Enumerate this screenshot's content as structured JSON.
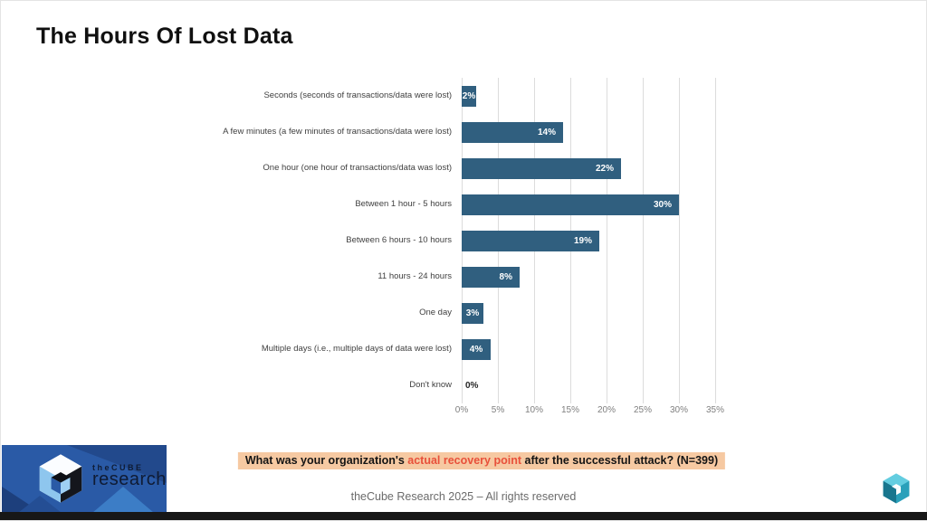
{
  "slide": {
    "title": "The Hours Of Lost Data",
    "question": {
      "prefix": "What was your organization's ",
      "highlight": "actual recovery point",
      "suffix": " after the successful attack? (N=399)",
      "bg_color": "#f6c9a2",
      "highlight_color": "#e8503a"
    },
    "footer": "theCube Research 2025 – All rights reserved"
  },
  "branding": {
    "logo_text_small": "theCUBE",
    "logo_text_large": "research"
  },
  "chart_data": {
    "type": "bar",
    "orientation": "horizontal",
    "title": "",
    "xlabel": "",
    "ylabel": "",
    "categories": [
      "Seconds (seconds of transactions/data were lost)",
      "A few minutes (a few minutes of transactions/data were lost)",
      "One hour (one hour of transactions/data was lost)",
      "Between 1 hour - 5 hours",
      "Between 6 hours - 10 hours",
      "11 hours - 24 hours",
      "One day",
      "Multiple days (i.e., multiple days of data were lost)",
      "Don't know"
    ],
    "values": [
      2,
      14,
      22,
      30,
      19,
      8,
      3,
      4,
      0
    ],
    "value_labels": [
      "2%",
      "14%",
      "22%",
      "30%",
      "19%",
      "8%",
      "3%",
      "4%",
      "0%"
    ],
    "x_ticks": [
      "0%",
      "5%",
      "10%",
      "15%",
      "20%",
      "25%",
      "30%",
      "35%"
    ],
    "xlim": [
      0,
      35
    ],
    "grid": true,
    "legend": false,
    "bar_color": "#305f7f",
    "gridline_color": "#dcdcdc",
    "tick_label_color": "#7f7f7f"
  }
}
